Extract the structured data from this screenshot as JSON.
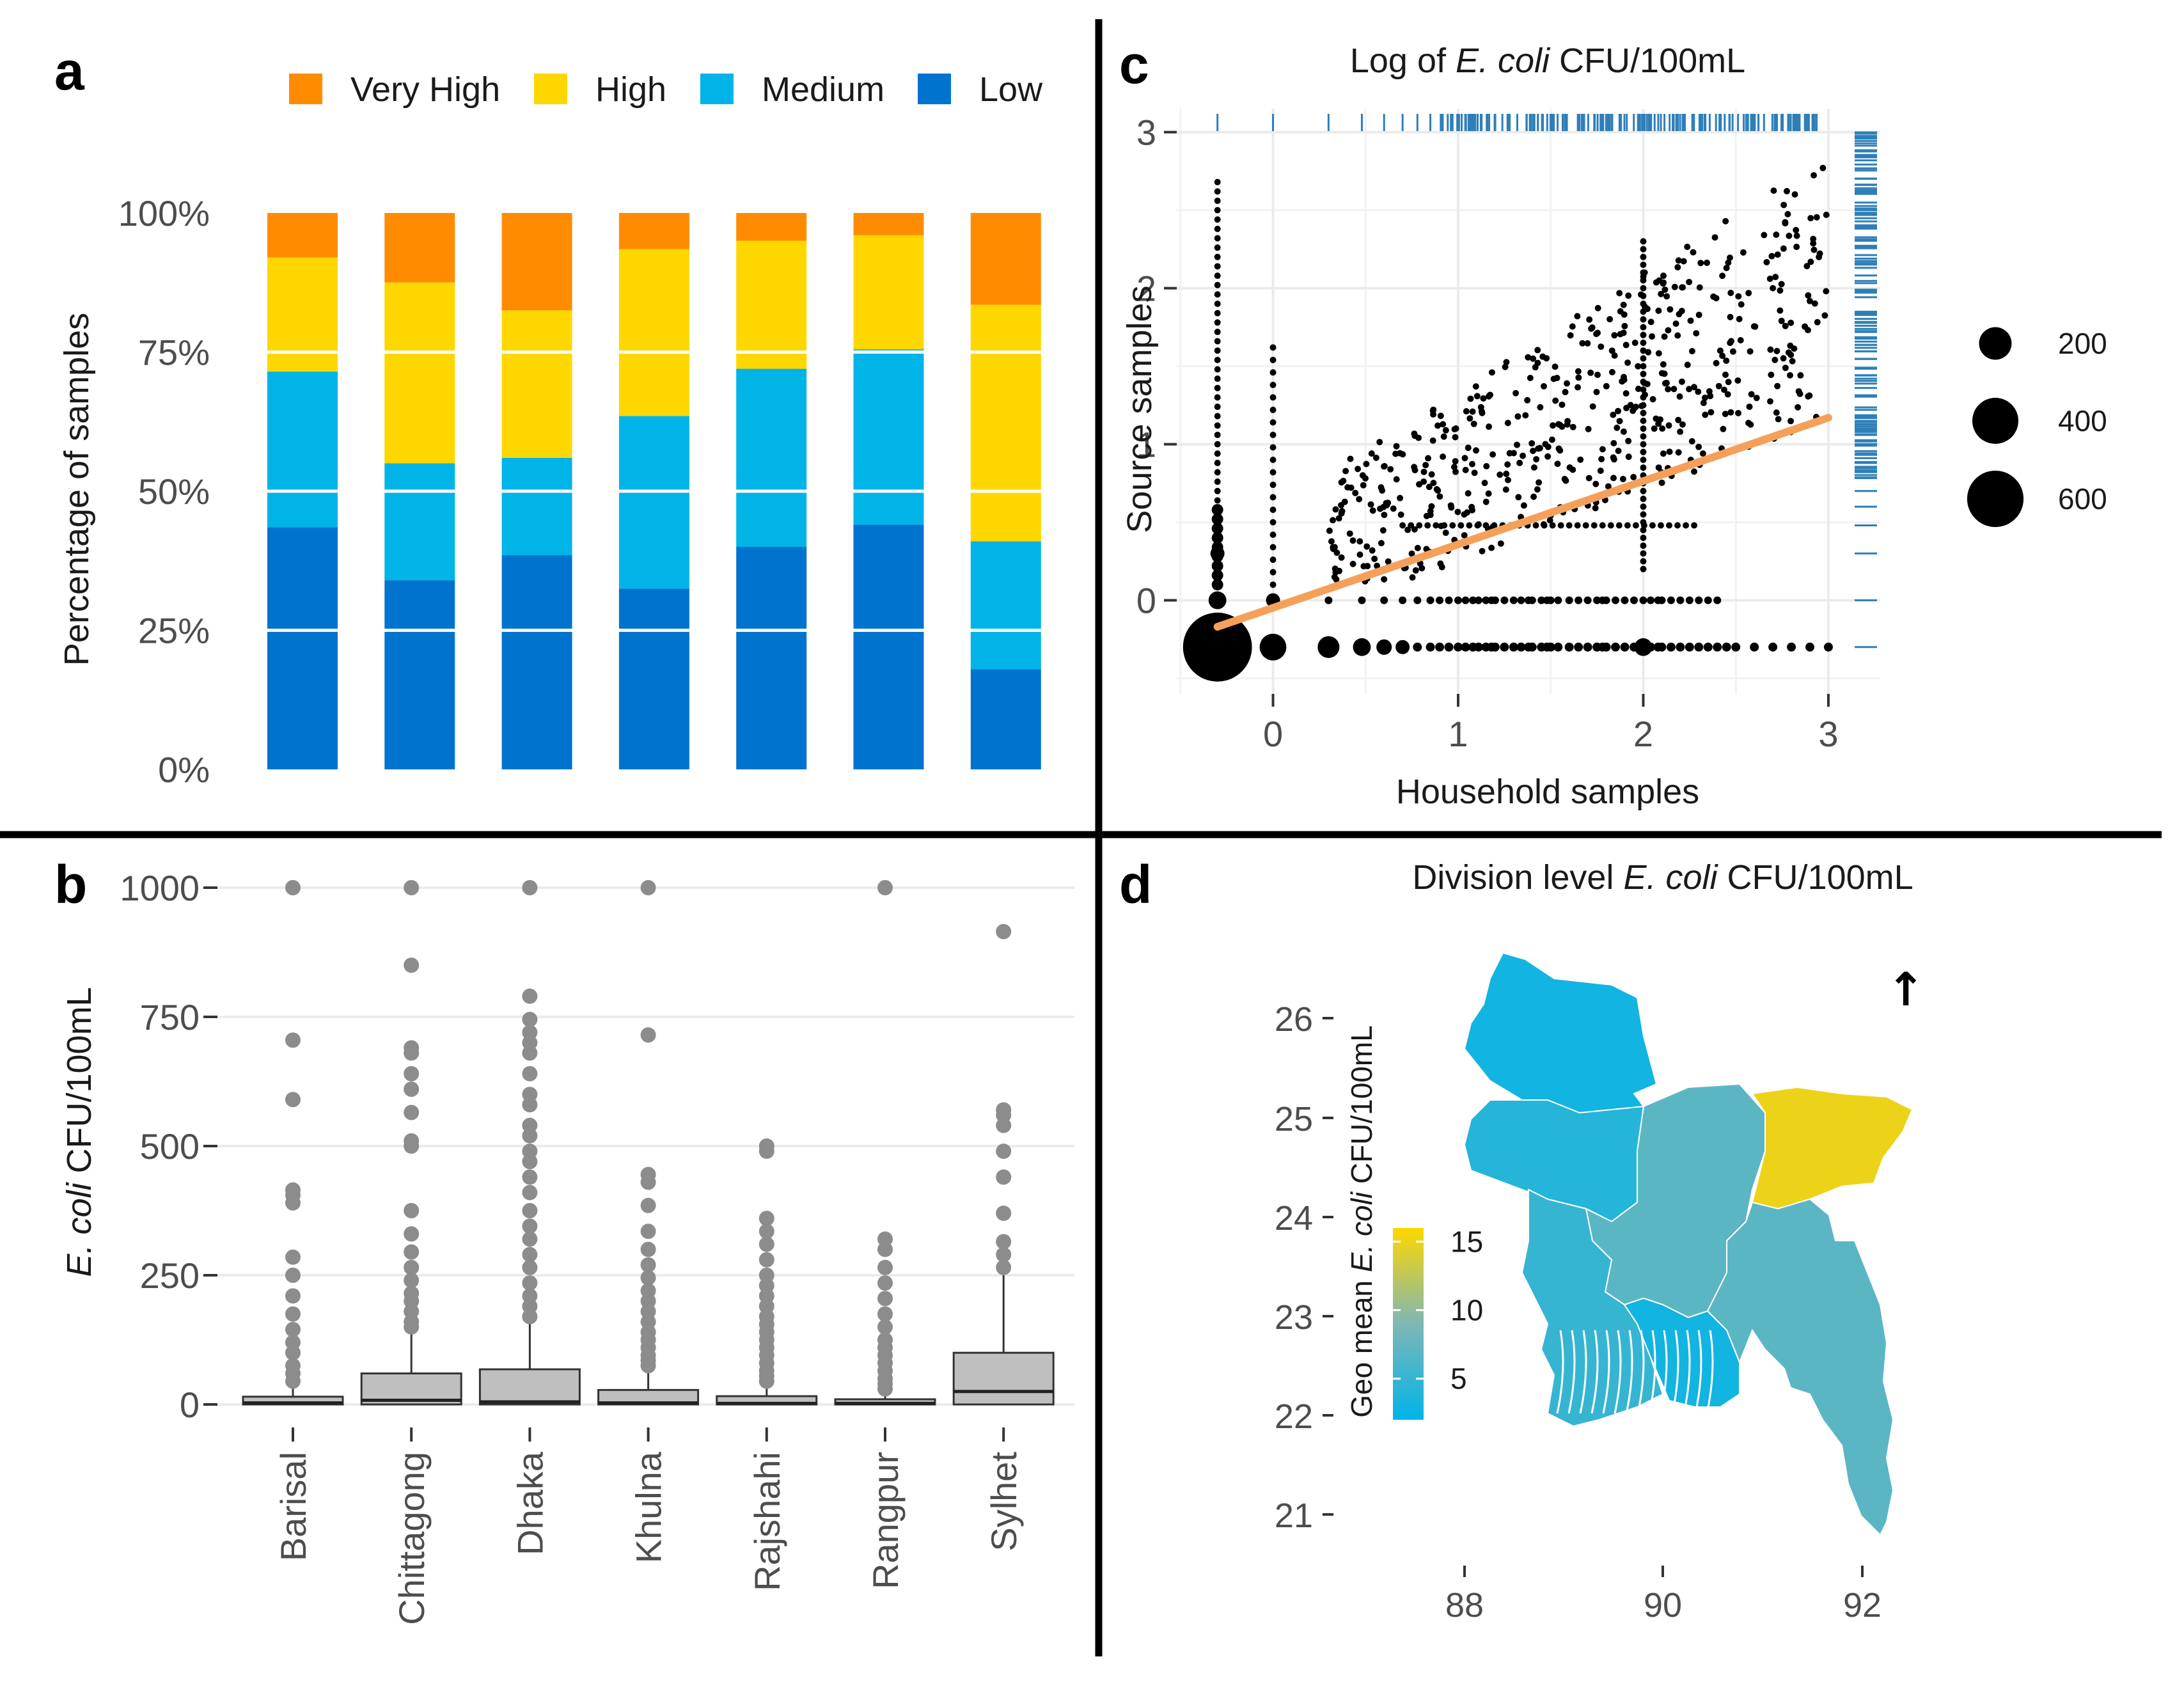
{
  "colors": {
    "very_high": "#FF8C00",
    "high": "#FFD700",
    "medium": "#00B4E8",
    "low": "#0073CF",
    "box_fill": "#BFBFBF",
    "outlier": "#8C8C8C",
    "trend": "#F5A05A",
    "rug": "#2E7FB8",
    "divider": "#000000",
    "grid": "#EBEBEB"
  },
  "panels": {
    "a": "a",
    "b": "b",
    "c": "c",
    "d": "d"
  },
  "chart_data": [
    {
      "id": "a",
      "type": "bar",
      "stacked": true,
      "ylabel": "Percentage of samples",
      "yticks": [
        "0%",
        "25%",
        "50%",
        "75%",
        "100%"
      ],
      "legend": [
        {
          "key": "very_high",
          "label": "Very High"
        },
        {
          "key": "high",
          "label": "High"
        },
        {
          "key": "medium",
          "label": "Medium"
        },
        {
          "key": "low",
          "label": "Low"
        }
      ],
      "categories": [
        "Barisal",
        "Chittagong",
        "Dhaka",
        "Khulna",
        "Rajshahi",
        "Rangpur",
        "Sylhet"
      ],
      "series": [
        {
          "name": "Low",
          "key": "low",
          "values": [
            43.5,
            34,
            38.5,
            32.5,
            40,
            44,
            18
          ]
        },
        {
          "name": "Medium",
          "key": "medium",
          "values": [
            28,
            21,
            17.5,
            31,
            32,
            31.5,
            23
          ]
        },
        {
          "name": "High",
          "key": "high",
          "values": [
            20.5,
            32.5,
            26.5,
            30,
            23,
            20.5,
            42.5
          ]
        },
        {
          "name": "Very High",
          "key": "very_high",
          "values": [
            8,
            12.5,
            17.5,
            6.5,
            5,
            4,
            16.5
          ]
        }
      ]
    },
    {
      "id": "b",
      "type": "box",
      "ylabel_italic": "E. coli",
      "ylabel_rest": " CFU/100mL",
      "ylim": [
        0,
        1000
      ],
      "yticks": [
        "0",
        "250",
        "500",
        "750",
        "1000"
      ],
      "categories": [
        "Barisal",
        "Chittagong",
        "Dhaka",
        "Khulna",
        "Rajshahi",
        "Rangpur",
        "Sylhet"
      ],
      "boxes": [
        {
          "q1": 0,
          "median": 3,
          "q3": 15,
          "whisker_high": 35,
          "outliers": [
            45,
            60,
            75,
            100,
            120,
            145,
            175,
            210,
            250,
            285,
            390,
            405,
            415,
            590,
            705,
            1000
          ]
        },
        {
          "q1": 0,
          "median": 8,
          "q3": 60,
          "whisker_high": 140,
          "outliers": [
            150,
            160,
            180,
            200,
            215,
            240,
            265,
            295,
            330,
            375,
            500,
            510,
            565,
            610,
            640,
            680,
            690,
            850,
            1000
          ]
        },
        {
          "q1": 0,
          "median": 5,
          "q3": 68,
          "whisker_high": 165,
          "outliers": [
            170,
            190,
            210,
            235,
            265,
            290,
            320,
            345,
            375,
            410,
            440,
            470,
            490,
            520,
            540,
            580,
            600,
            640,
            680,
            700,
            720,
            745,
            790,
            1000
          ]
        },
        {
          "q1": 0,
          "median": 3,
          "q3": 28,
          "whisker_high": 70,
          "outliers": [
            75,
            85,
            95,
            110,
            125,
            140,
            160,
            180,
            200,
            220,
            245,
            270,
            300,
            335,
            385,
            430,
            445,
            715,
            1000
          ]
        },
        {
          "q1": 0,
          "median": 2,
          "q3": 16,
          "whisker_high": 38,
          "outliers": [
            45,
            55,
            65,
            80,
            95,
            110,
            125,
            140,
            155,
            170,
            190,
            210,
            230,
            250,
            280,
            310,
            335,
            360,
            490,
            500
          ]
        },
        {
          "q1": 0,
          "median": 2,
          "q3": 10,
          "whisker_high": 25,
          "outliers": [
            30,
            40,
            50,
            65,
            80,
            95,
            110,
            125,
            150,
            175,
            205,
            235,
            265,
            300,
            320,
            1000
          ]
        },
        {
          "q1": 0,
          "median": 25,
          "q3": 100,
          "whisker_high": 250,
          "outliers": [
            265,
            290,
            315,
            370,
            440,
            490,
            540,
            560,
            570,
            915
          ]
        }
      ]
    },
    {
      "id": "c",
      "type": "scatter",
      "title_prefix": "Log of ",
      "title_italic": "E. coli",
      "title_suffix": " CFU/100mL",
      "xlabel": "Household samples",
      "ylabel": "Source samples",
      "xlim": [
        -0.52,
        3.28
      ],
      "ylim": [
        -0.6,
        3.15
      ],
      "xticks": [
        0,
        1,
        2,
        3
      ],
      "yticks": [
        0,
        1,
        2,
        3
      ],
      "fit": {
        "x": [
          -0.3,
          3.0
        ],
        "y": [
          -0.17,
          1.17
        ]
      },
      "size_legend": [
        "200",
        "400",
        "600"
      ],
      "big_points": [
        {
          "x": -0.3,
          "y": -0.3,
          "n": 600
        },
        {
          "x": 0,
          "y": -0.3,
          "n": 90
        },
        {
          "x": 0.3,
          "y": -0.3,
          "n": 60
        },
        {
          "x": 0.48,
          "y": -0.3,
          "n": 40
        },
        {
          "x": 2.0,
          "y": -0.3,
          "n": 40
        },
        {
          "x": -0.3,
          "y": 0,
          "n": 40
        },
        {
          "x": 0,
          "y": 0,
          "n": 25
        },
        {
          "x": -0.3,
          "y": 0.3,
          "n": 25
        },
        {
          "x": 0.6,
          "y": -0.3,
          "n": 30
        },
        {
          "x": 0.7,
          "y": -0.3,
          "n": 25
        }
      ]
    },
    {
      "id": "d",
      "type": "map",
      "title_prefix": "Division level  ",
      "title_italic": "E. coli",
      "title_suffix": " CFU/100mL",
      "yticks": [
        "21",
        "22",
        "23",
        "24",
        "25",
        "26"
      ],
      "xticks": [
        "88",
        "90",
        "92"
      ],
      "legend_title_prefix": "Geo mean ",
      "legend_title_italic": "E. coli",
      "legend_title_suffix": " CFU/100mL",
      "legend_ticks": [
        "5",
        "10",
        "15"
      ],
      "legend_range": [
        2,
        16
      ],
      "north_arrow": "↑",
      "divisions": [
        {
          "name": "Rangpur",
          "value": 3
        },
        {
          "name": "Rajshahi",
          "value": 4
        },
        {
          "name": "Dhaka",
          "value": 7
        },
        {
          "name": "Sylhet",
          "value": 15
        },
        {
          "name": "Khulna",
          "value": 5
        },
        {
          "name": "Barisal",
          "value": 3
        },
        {
          "name": "Chittagong",
          "value": 7
        }
      ]
    }
  ]
}
